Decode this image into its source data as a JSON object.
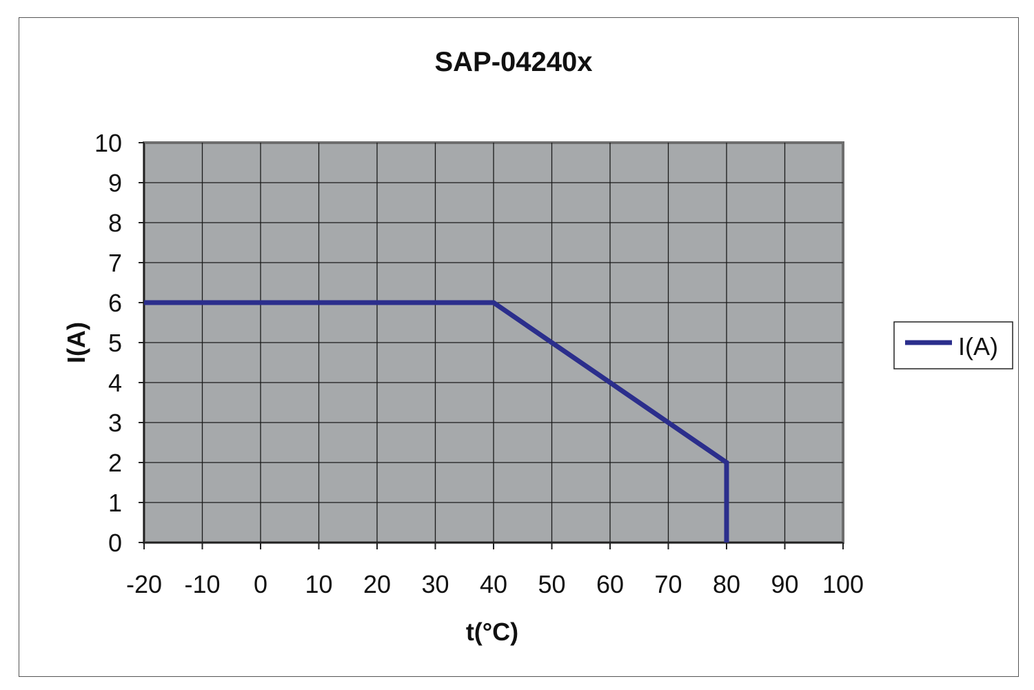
{
  "chart_data": {
    "type": "line",
    "title": "SAP-04240x",
    "xlabel": "t(°C)",
    "ylabel": "I(A)",
    "xlim": [
      -20,
      100
    ],
    "ylim": [
      0,
      10
    ],
    "x_ticks": [
      "-20",
      "-10",
      "0",
      "10",
      "20",
      "30",
      "40",
      "50",
      "60",
      "70",
      "80",
      "90",
      "100"
    ],
    "y_ticks": [
      "0",
      "1",
      "2",
      "3",
      "4",
      "5",
      "6",
      "7",
      "8",
      "9",
      "10"
    ],
    "grid": true,
    "legend_position": "right",
    "series": [
      {
        "name": "I(A)",
        "color": "#2b2e8c",
        "points": [
          {
            "x": -20,
            "y": 6
          },
          {
            "x": 40,
            "y": 6
          },
          {
            "x": 80,
            "y": 2
          },
          {
            "x": 80,
            "y": 0
          }
        ]
      }
    ]
  },
  "colors": {
    "plot_background": "#a6a9ab",
    "plot_border": "#6e6e6e",
    "grid": "#1a1a1a",
    "series": "#2b2e8c"
  }
}
